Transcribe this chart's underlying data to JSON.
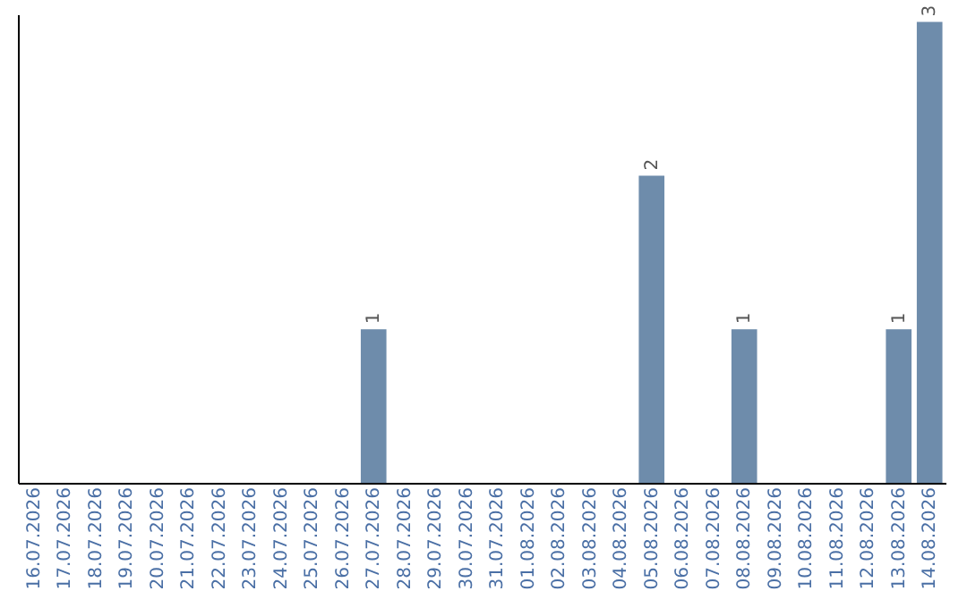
{
  "chart_data": {
    "type": "bar",
    "categories": [
      "16.07.2026",
      "17.07.2026",
      "18.07.2026",
      "19.07.2026",
      "20.07.2026",
      "21.07.2026",
      "22.07.2026",
      "23.07.2026",
      "24.07.2026",
      "25.07.2026",
      "26.07.2026",
      "27.07.2026",
      "28.07.2026",
      "29.07.2026",
      "30.07.2026",
      "31.07.2026",
      "01.08.2026",
      "02.08.2026",
      "03.08.2026",
      "04.08.2026",
      "05.08.2026",
      "06.08.2026",
      "07.08.2026",
      "08.08.2026",
      "09.08.2026",
      "10.08.2026",
      "11.08.2026",
      "12.08.2026",
      "13.08.2026",
      "14.08.2026"
    ],
    "values": [
      0,
      0,
      0,
      0,
      0,
      0,
      0,
      0,
      0,
      0,
      0,
      1,
      0,
      0,
      0,
      0,
      0,
      0,
      0,
      0,
      2,
      0,
      0,
      1,
      0,
      0,
      0,
      0,
      1,
      3
    ],
    "value_labels": [
      null,
      null,
      null,
      null,
      null,
      null,
      null,
      null,
      null,
      null,
      null,
      "1",
      null,
      null,
      null,
      null,
      null,
      null,
      null,
      null,
      "2",
      null,
      null,
      "1",
      null,
      null,
      null,
      null,
      "1",
      "3"
    ],
    "color": "#6e8cab",
    "ylim": [
      0,
      3.05
    ],
    "tick_labels": "x",
    "grid": false
  }
}
